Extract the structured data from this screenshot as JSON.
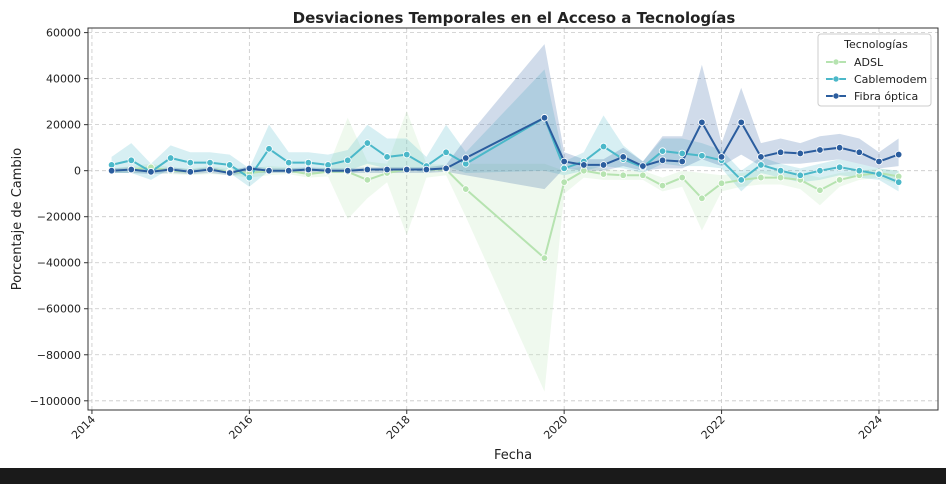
{
  "chart_data": {
    "type": "line",
    "title": "Desviaciones Temporales en el Acceso a Tecnologías",
    "xlabel": "Fecha",
    "ylabel": "Porcentaje de Cambio",
    "xlim": [
      2013.95,
      2024.75
    ],
    "ylim": [
      -104000,
      62000
    ],
    "x_ticks": [
      2014,
      2016,
      2018,
      2020,
      2022,
      2024
    ],
    "x_tick_labels": [
      "2014",
      "2016",
      "2018",
      "2020",
      "2022",
      "2024"
    ],
    "y_ticks": [
      60000,
      40000,
      20000,
      0,
      -20000,
      -40000,
      -60000,
      -80000,
      -100000
    ],
    "y_tick_labels": [
      "60000",
      "40000",
      "20000",
      "0",
      "−20000",
      "−40000",
      "−60000",
      "−80000",
      "−100000"
    ],
    "grid": true,
    "legend": {
      "title": "Tecnologías",
      "placement": "top-right"
    },
    "x": [
      2014.25,
      2014.5,
      2014.75,
      2015.0,
      2015.25,
      2015.5,
      2015.75,
      2016.0,
      2016.25,
      2016.5,
      2016.75,
      2017.0,
      2017.25,
      2017.5,
      2017.75,
      2018.0,
      2018.25,
      2018.5,
      2018.75,
      2019.75,
      2020.0,
      2020.25,
      2020.5,
      2020.75,
      2021.0,
      2021.25,
      2021.5,
      2021.75,
      2022.0,
      2022.25,
      2022.5,
      2022.75,
      2023.0,
      2023.25,
      2023.5,
      2023.75,
      2024.0,
      2024.25
    ],
    "series": [
      {
        "name": "ADSL",
        "color": "#b6e3b0",
        "values": [
          0,
          500,
          1500,
          0,
          -500,
          500,
          -500,
          -1000,
          0,
          0,
          -1500,
          -500,
          -500,
          -4000,
          -1000,
          500,
          500,
          500,
          -8000,
          -38000,
          -5000,
          0,
          -1500,
          -2000,
          -2000,
          -6500,
          -3000,
          -12000,
          -5500,
          -4000,
          -3000,
          -3000,
          -4000,
          -8500,
          -4000,
          -2000,
          -1000,
          -2500
        ],
        "band_lower": [
          -1000,
          -1000,
          -1000,
          -1500,
          -2000,
          -1500,
          -2000,
          -3000,
          -2000,
          -1500,
          -3000,
          -2500,
          -21000,
          -12000,
          -5000,
          -28000,
          -3000,
          -2000,
          -20000,
          -96000,
          -10000,
          -3000,
          -4000,
          -4000,
          -4000,
          -9000,
          -7000,
          -26000,
          -9000,
          -7000,
          -6000,
          -6000,
          -8000,
          -15000,
          -7000,
          -4000,
          -3000,
          -6000
        ],
        "band_upper": [
          1000,
          2000,
          3000,
          1500,
          1000,
          2000,
          1000,
          1000,
          2000,
          1500,
          1000,
          1500,
          23000,
          4000,
          3000,
          26000,
          3000,
          2500,
          3000,
          3000,
          0,
          2000,
          1000,
          0,
          0,
          -3000,
          0,
          -1000,
          -2000,
          -1000,
          0,
          0,
          -1000,
          -3000,
          -1000,
          0,
          1000,
          0
        ]
      },
      {
        "name": "Cablemodem",
        "color": "#4bb8c9",
        "values": [
          2500,
          4500,
          -500,
          5500,
          3500,
          3500,
          2500,
          -3000,
          9500,
          3500,
          3500,
          2500,
          4500,
          12000,
          6000,
          7000,
          2000,
          8000,
          3000,
          23000,
          1000,
          4000,
          10500,
          5000,
          1500,
          8500,
          7500,
          6500,
          4500,
          -4000,
          2500,
          0,
          -2000,
          0,
          1500,
          0,
          -1500,
          -5000
        ],
        "band_lower": [
          -1000,
          -1000,
          -4000,
          1000,
          0,
          0,
          -1000,
          -7000,
          0,
          0,
          0,
          0,
          0,
          3000,
          1000,
          1000,
          -1000,
          2000,
          -1000,
          0,
          -2000,
          0,
          2000,
          1000,
          -1000,
          3000,
          2000,
          2000,
          1000,
          -9000,
          -1000,
          -3000,
          -5000,
          -4000,
          -2000,
          -3000,
          -4000,
          -9000
        ],
        "band_upper": [
          6000,
          12000,
          3000,
          11000,
          8000,
          8000,
          7000,
          1000,
          20000,
          8000,
          8000,
          7000,
          9000,
          20000,
          14000,
          14000,
          6000,
          20000,
          8000,
          44000,
          4000,
          8000,
          24000,
          11000,
          4000,
          14000,
          14000,
          12000,
          9000,
          0,
          6000,
          3000,
          1000,
          3000,
          5000,
          3000,
          1000,
          0
        ]
      },
      {
        "name": "Fibra óptica",
        "color": "#2b5d9e",
        "values": [
          0,
          500,
          -500,
          500,
          -500,
          500,
          -1000,
          1000,
          0,
          0,
          500,
          0,
          0,
          500,
          500,
          500,
          500,
          1000,
          5500,
          23000,
          4000,
          2500,
          2500,
          6000,
          2000,
          4500,
          4000,
          21000,
          6000,
          21000,
          6000,
          8000,
          7500,
          9000,
          10000,
          8000,
          4000,
          7000
        ],
        "band_lower": [
          -1000,
          -1000,
          -1500,
          -1000,
          -1500,
          -1000,
          -2000,
          -1000,
          -1000,
          -1000,
          -1000,
          -1000,
          -1000,
          -1000,
          -1000,
          -1000,
          -1000,
          -500,
          -2000,
          -8000,
          1000,
          0,
          0,
          2000,
          0,
          1000,
          1000,
          5000,
          2000,
          7000,
          2000,
          3000,
          3000,
          4000,
          5000,
          3000,
          1000,
          2000
        ],
        "band_upper": [
          1000,
          1500,
          500,
          1500,
          500,
          1500,
          0,
          2000,
          1000,
          1000,
          1500,
          1000,
          1000,
          1500,
          1500,
          1500,
          1500,
          2500,
          14000,
          55000,
          8000,
          5000,
          5000,
          10000,
          4000,
          15000,
          15000,
          46000,
          12000,
          36000,
          12000,
          14000,
          12000,
          15000,
          16000,
          14000,
          8000,
          14000
        ]
      }
    ]
  }
}
